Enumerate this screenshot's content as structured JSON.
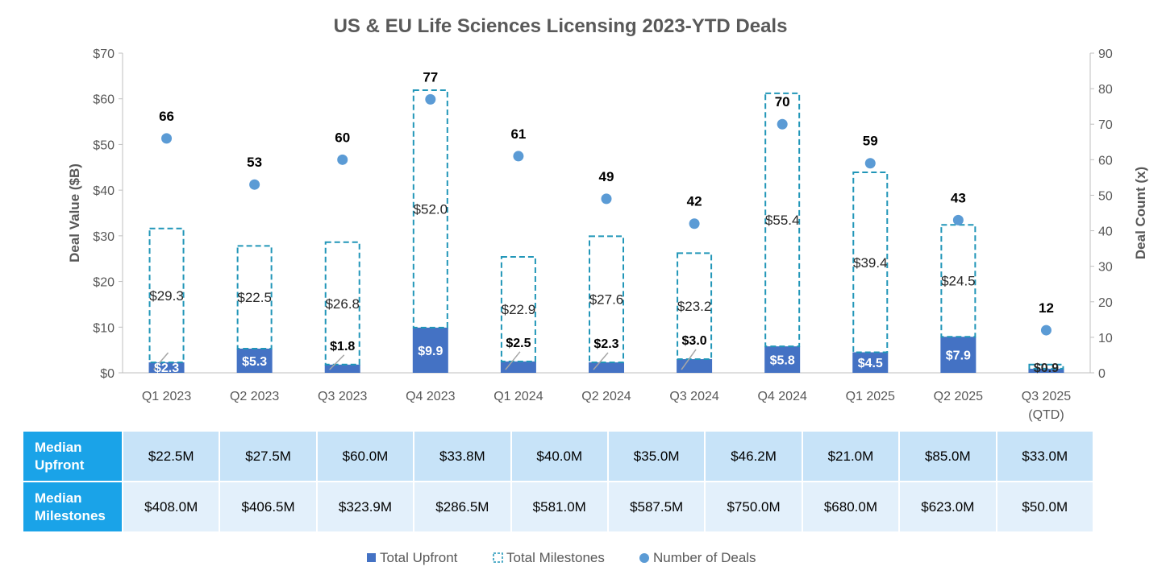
{
  "chart_data": {
    "type": "bar",
    "title": "US & EU Life Sciences Licensing 2023-YTD Deals",
    "categories": [
      [
        "Q1 2023"
      ],
      [
        "Q2 2023"
      ],
      [
        "Q3 2023"
      ],
      [
        "Q4 2023"
      ],
      [
        "Q1 2024"
      ],
      [
        "Q2 2024"
      ],
      [
        "Q3 2024"
      ],
      [
        "Q4 2024"
      ],
      [
        "Q1 2025"
      ],
      [
        "Q2 2025"
      ],
      [
        "Q3 2025",
        "(QTD)"
      ]
    ],
    "ylabel": "Deal Value ($B)",
    "y2label": "Deal Count (x)",
    "ylim": [
      0,
      70
    ],
    "y2lim": [
      0,
      90
    ],
    "yticks": [
      "$0",
      "$10",
      "$20",
      "$30",
      "$40",
      "$50",
      "$60",
      "$70"
    ],
    "y2ticks": [
      "0",
      "10",
      "20",
      "30",
      "40",
      "50",
      "60",
      "70",
      "80",
      "90"
    ],
    "grid": false,
    "legend_position": "bottom",
    "stacked": true,
    "series": [
      {
        "name": "Total Upfront",
        "type": "bar",
        "color": "#4472c4",
        "values": [
          2.3,
          5.3,
          1.8,
          9.9,
          2.5,
          2.3,
          3.0,
          5.8,
          4.5,
          7.9,
          0.9
        ],
        "labels": [
          "$2.3",
          "$5.3",
          "$1.8",
          "$9.9",
          "$2.5",
          "$2.3",
          "$3.0",
          "$5.8",
          "$4.5",
          "$7.9",
          "$0.9"
        ]
      },
      {
        "name": "Total Milestones",
        "type": "bar-dashed-outline",
        "color": "#2196b8",
        "values": [
          29.3,
          22.5,
          26.8,
          52.0,
          22.9,
          27.6,
          23.2,
          55.4,
          39.4,
          24.5,
          0.9
        ],
        "labels": [
          "$29.3",
          "$22.5",
          "$26.8",
          "$52.0",
          "$22.9",
          "$27.6",
          "$23.2",
          "$55.4",
          "$39.4",
          "$24.5",
          ""
        ]
      },
      {
        "name": "Number of Deals",
        "type": "scatter",
        "axis": "right",
        "color": "#5b9bd5",
        "values": [
          66,
          53,
          60,
          77,
          61,
          49,
          42,
          70,
          59,
          43,
          12
        ],
        "labels": [
          "66",
          "53",
          "60",
          "77",
          "61",
          "49",
          "42",
          "70",
          "59",
          "43",
          "12"
        ]
      }
    ]
  },
  "table": {
    "rows": [
      {
        "label": [
          "Median",
          "Upfront"
        ],
        "values": [
          "$22.5M",
          "$27.5M",
          "$60.0M",
          "$33.8M",
          "$40.0M",
          "$35.0M",
          "$46.2M",
          "$21.0M",
          "$85.0M",
          "$33.0M"
        ]
      },
      {
        "label": [
          "Median",
          "Milestones"
        ],
        "values": [
          "$408.0M",
          "$406.5M",
          "$323.9M",
          "$286.5M",
          "$581.0M",
          "$587.5M",
          "$750.0M",
          "$680.0M",
          "$623.0M",
          "$50.0M"
        ]
      }
    ]
  },
  "colors": {
    "upfront": "#4472c4",
    "milestones": "#2196b8",
    "deals": "#5b9bd5",
    "axis": "#bfbfbf",
    "text": "#595959",
    "row_head": "#1aa3e8"
  }
}
